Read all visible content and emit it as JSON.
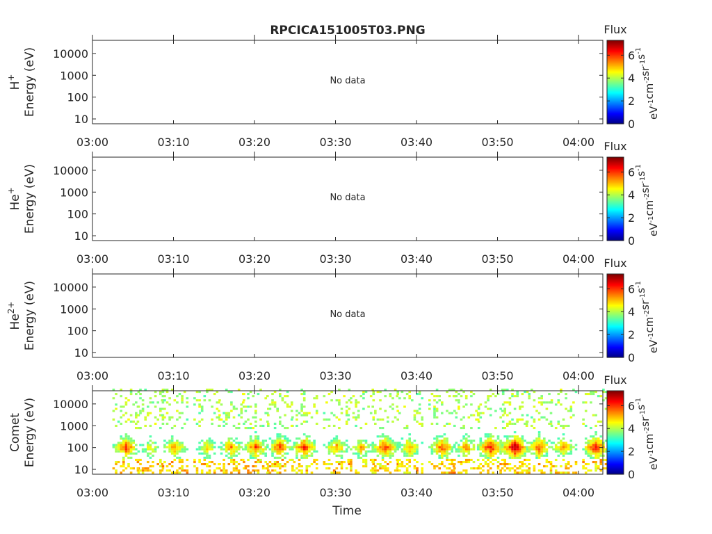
{
  "title": "RPCICA151005T03.PNG",
  "xlabel": "Time",
  "colorbar": {
    "label": "Flux",
    "unit_main": "eV",
    "unit_parts": [
      {
        "base": "eV",
        "exp": "-1"
      },
      {
        "base": "cm",
        "exp": "-2"
      },
      {
        "base": "sr",
        "exp": "-1"
      },
      {
        "base": "s",
        "exp": "-1"
      }
    ],
    "ticks": [
      "0",
      "2",
      "4",
      "6"
    ],
    "tick_values": [
      0,
      2,
      4,
      6
    ],
    "range": [
      0,
      7.3
    ],
    "colormap": "jet"
  },
  "no_data_text": "No data",
  "chart_data": [
    {
      "type": "heatmap",
      "panel": "H+",
      "ylabel_species": "H",
      "ylabel_charge": "+",
      "ylabel": "Energy (eV)",
      "yscale": "log",
      "ylim": [
        6,
        40000
      ],
      "yticks": [
        "10",
        "100",
        "1000",
        "10000"
      ],
      "ytick_values": [
        10,
        100,
        1000,
        10000
      ],
      "xticks": [
        "03:00",
        "03:10",
        "03:20",
        "03:30",
        "03:40",
        "03:50",
        "04:00"
      ],
      "xlim": [
        "03:00",
        "04:03"
      ],
      "status": "No data"
    },
    {
      "type": "heatmap",
      "panel": "He+",
      "ylabel_species": "He",
      "ylabel_charge": "+",
      "ylabel": "Energy (eV)",
      "yscale": "log",
      "ylim": [
        6,
        40000
      ],
      "yticks": [
        "10",
        "100",
        "1000",
        "10000"
      ],
      "ytick_values": [
        10,
        100,
        1000,
        10000
      ],
      "xticks": [
        "03:00",
        "03:10",
        "03:20",
        "03:30",
        "03:40",
        "03:50",
        "04:00"
      ],
      "xlim": [
        "03:00",
        "04:03"
      ],
      "status": "No data"
    },
    {
      "type": "heatmap",
      "panel": "He2+",
      "ylabel_species": "He",
      "ylabel_charge": "2+",
      "ylabel": "Energy (eV)",
      "yscale": "log",
      "ylim": [
        6,
        40000
      ],
      "yticks": [
        "10",
        "100",
        "1000",
        "10000"
      ],
      "ytick_values": [
        10,
        100,
        1000,
        10000
      ],
      "xticks": [
        "03:00",
        "03:10",
        "03:20",
        "03:30",
        "03:40",
        "03:50",
        "04:00"
      ],
      "xlim": [
        "03:00",
        "04:03"
      ],
      "status": "No data"
    },
    {
      "type": "heatmap",
      "panel": "Comet",
      "ylabel_species": "Comet",
      "ylabel_charge": "",
      "ylabel": "Energy (eV)",
      "yscale": "log",
      "ylim": [
        6,
        40000
      ],
      "yticks": [
        "10",
        "100",
        "1000",
        "10000"
      ],
      "ytick_values": [
        10,
        100,
        1000,
        10000
      ],
      "xticks": [
        "03:00",
        "03:10",
        "03:20",
        "03:30",
        "03:40",
        "03:50",
        "04:00"
      ],
      "xlim": [
        "03:00",
        "04:03"
      ],
      "status": "",
      "bursts": [
        {
          "t": "03:04",
          "peak_flux": 6.0
        },
        {
          "t": "03:07",
          "peak_flux": 4.8
        },
        {
          "t": "03:10",
          "peak_flux": 5.5
        },
        {
          "t": "03:14",
          "peak_flux": 5.0
        },
        {
          "t": "03:17",
          "peak_flux": 5.5
        },
        {
          "t": "03:20",
          "peak_flux": 6.0
        },
        {
          "t": "03:23",
          "peak_flux": 6.0
        },
        {
          "t": "03:26",
          "peak_flux": 6.2
        },
        {
          "t": "03:30",
          "peak_flux": 5.5
        },
        {
          "t": "03:33",
          "peak_flux": 5.3
        },
        {
          "t": "03:36",
          "peak_flux": 6.2
        },
        {
          "t": "03:39",
          "peak_flux": 5.5
        },
        {
          "t": "03:43",
          "peak_flux": 6.0
        },
        {
          "t": "03:46",
          "peak_flux": 5.5
        },
        {
          "t": "03:49",
          "peak_flux": 6.5
        },
        {
          "t": "03:52",
          "peak_flux": 7.0
        },
        {
          "t": "03:55",
          "peak_flux": 6.0
        },
        {
          "t": "03:58",
          "peak_flux": 5.5
        },
        {
          "t": "04:02",
          "peak_flux": 6.5
        }
      ]
    }
  ]
}
